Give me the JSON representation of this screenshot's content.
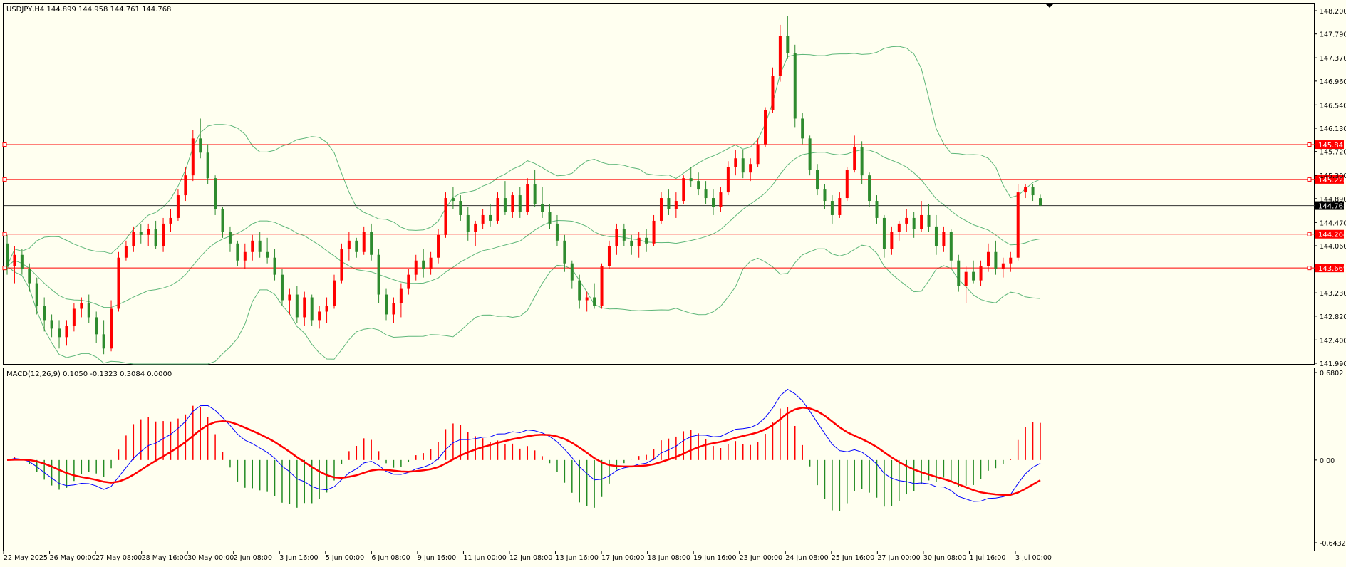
{
  "chart_header": "USDJPY,H4  144.899 144.958 144.761 144.768",
  "macd_header": "MACD(12,26,9) 0.1050 -0.1323 0.3084 0.0000",
  "colors": {
    "background": "#fffff0",
    "bull_candle": "#ff0000",
    "bear_candle": "#2e8b2e",
    "bollinger": "#5fb77a",
    "level_line": "#ff0000",
    "bid_line": "#333333",
    "macd_hist_up": "#ff0000",
    "macd_hist_down": "#228b22",
    "macd_line": "#0000ff",
    "signal_line": "#ff0000",
    "axis": "#000000",
    "price_tag": "#ff0000",
    "bid_tag": "#000000"
  },
  "chart_data": [
    {
      "type": "candlestick",
      "symbol": "USDJPY",
      "timeframe": "H4",
      "ylim": [
        141.99,
        148.2
      ],
      "y_ticks": [
        "148.200",
        "147.790",
        "147.370",
        "146.960",
        "146.540",
        "146.130",
        "145.720",
        "145.300",
        "144.890",
        "144.470",
        "144.060",
        "143.230",
        "142.820",
        "142.400",
        "141.990"
      ],
      "x_ticks": [
        "22 May 2025",
        "26 May 00:00",
        "27 May 08:00",
        "28 May 16:00",
        "30 May 00:00",
        "2 Jun 08:00",
        "3 Jun 16:00",
        "5 Jun 00:00",
        "6 Jun 08:00",
        "9 Jun 16:00",
        "11 Jun 00:00",
        "12 Jun 08:00",
        "13 Jun 16:00",
        "17 Jun 00:00",
        "18 Jun 08:00",
        "19 Jun 16:00",
        "23 Jun 00:00",
        "24 Jun 08:00",
        "25 Jun 16:00",
        "27 Jun 00:00",
        "30 Jun 08:00",
        "1 Jul 16:00",
        "3 Jul 00:00"
      ],
      "horizontal_levels": [
        145.841,
        145.228,
        144.264,
        143.669
      ],
      "level_labels": [
        "145.841",
        "145.228",
        "144.264",
        "143.669"
      ],
      "bid": 144.768,
      "bid_label": "144.768",
      "candles": [
        [
          144.1,
          144.25,
          143.55,
          143.7
        ],
        [
          143.7,
          144.05,
          143.4,
          143.9
        ],
        [
          143.9,
          144.0,
          143.55,
          143.65
        ],
        [
          143.65,
          143.75,
          143.25,
          143.4
        ],
        [
          143.4,
          143.5,
          142.85,
          143.0
        ],
        [
          143.0,
          143.15,
          142.55,
          142.75
        ],
        [
          142.75,
          142.85,
          142.45,
          142.6
        ],
        [
          142.6,
          142.75,
          142.25,
          142.45
        ],
        [
          142.45,
          142.75,
          142.3,
          142.65
        ],
        [
          142.65,
          143.05,
          142.55,
          142.95
        ],
        [
          142.95,
          143.15,
          142.8,
          143.05
        ],
        [
          143.05,
          143.2,
          142.7,
          142.8
        ],
        [
          142.8,
          142.9,
          142.35,
          142.5
        ],
        [
          142.5,
          142.75,
          142.15,
          142.25
        ],
        [
          142.25,
          143.1,
          142.2,
          142.95
        ],
        [
          142.95,
          143.95,
          142.9,
          143.85
        ],
        [
          143.85,
          144.15,
          143.8,
          144.05
        ],
        [
          144.05,
          144.4,
          143.95,
          144.3
        ],
        [
          144.3,
          144.45,
          144.1,
          144.25
        ],
        [
          144.25,
          144.45,
          144.05,
          144.35
        ],
        [
          144.35,
          144.5,
          144.0,
          144.05
        ],
        [
          144.05,
          144.55,
          143.95,
          144.45
        ],
        [
          144.45,
          144.7,
          144.3,
          144.55
        ],
        [
          144.55,
          145.05,
          144.5,
          144.95
        ],
        [
          144.95,
          145.45,
          144.85,
          145.3
        ],
        [
          145.3,
          146.1,
          145.2,
          145.95
        ],
        [
          145.95,
          146.3,
          145.6,
          145.7
        ],
        [
          145.7,
          145.85,
          145.15,
          145.25
        ],
        [
          145.25,
          145.3,
          144.6,
          144.7
        ],
        [
          144.7,
          144.75,
          144.2,
          144.3
        ],
        [
          144.3,
          144.4,
          143.95,
          144.1
        ],
        [
          144.1,
          144.15,
          143.7,
          143.8
        ],
        [
          143.8,
          144.1,
          143.65,
          143.95
        ],
        [
          143.95,
          144.25,
          143.8,
          144.15
        ],
        [
          144.15,
          144.3,
          143.85,
          143.95
        ],
        [
          143.95,
          144.2,
          143.75,
          143.85
        ],
        [
          143.85,
          144.0,
          143.45,
          143.55
        ],
        [
          143.55,
          143.65,
          143.0,
          143.1
        ],
        [
          143.1,
          143.3,
          142.85,
          143.2
        ],
        [
          143.2,
          143.35,
          142.7,
          142.8
        ],
        [
          142.8,
          143.25,
          142.65,
          143.15
        ],
        [
          143.15,
          143.2,
          142.65,
          142.75
        ],
        [
          142.75,
          143.0,
          142.6,
          142.9
        ],
        [
          142.9,
          143.15,
          142.7,
          143.0
        ],
        [
          143.0,
          143.55,
          142.95,
          143.45
        ],
        [
          143.45,
          144.1,
          143.4,
          144.0
        ],
        [
          144.0,
          144.3,
          143.8,
          144.15
        ],
        [
          144.15,
          144.2,
          143.85,
          143.95
        ],
        [
          143.95,
          144.4,
          143.9,
          144.3
        ],
        [
          144.3,
          144.45,
          143.8,
          143.9
        ],
        [
          143.9,
          144.0,
          143.05,
          143.2
        ],
        [
          143.2,
          143.3,
          142.75,
          142.85
        ],
        [
          142.85,
          143.15,
          142.7,
          143.05
        ],
        [
          143.05,
          143.4,
          142.8,
          143.3
        ],
        [
          143.3,
          143.65,
          143.2,
          143.55
        ],
        [
          143.55,
          143.9,
          143.45,
          143.8
        ],
        [
          143.8,
          144.0,
          143.5,
          143.65
        ],
        [
          143.65,
          143.95,
          143.55,
          143.85
        ],
        [
          143.85,
          144.35,
          143.75,
          144.25
        ],
        [
          144.25,
          145.0,
          144.2,
          144.9
        ],
        [
          144.9,
          145.1,
          144.7,
          144.85
        ],
        [
          144.85,
          144.95,
          144.5,
          144.6
        ],
        [
          144.6,
          144.75,
          144.15,
          144.3
        ],
        [
          144.3,
          144.5,
          144.05,
          144.45
        ],
        [
          144.45,
          144.7,
          144.35,
          144.6
        ],
        [
          144.6,
          144.8,
          144.4,
          144.5
        ],
        [
          144.5,
          145.0,
          144.45,
          144.9
        ],
        [
          144.9,
          145.2,
          144.6,
          144.65
        ],
        [
          144.65,
          145.0,
          144.55,
          144.95
        ],
        [
          144.95,
          145.1,
          144.55,
          144.65
        ],
        [
          144.65,
          145.25,
          144.6,
          145.15
        ],
        [
          145.15,
          145.4,
          144.75,
          144.8
        ],
        [
          144.8,
          145.1,
          144.55,
          144.65
        ],
        [
          144.65,
          144.8,
          144.35,
          144.45
        ],
        [
          144.45,
          144.6,
          144.05,
          144.15
        ],
        [
          144.15,
          144.25,
          143.6,
          143.75
        ],
        [
          143.75,
          143.8,
          143.3,
          143.45
        ],
        [
          143.45,
          143.55,
          142.95,
          143.1
        ],
        [
          143.1,
          143.25,
          142.9,
          143.15
        ],
        [
          143.15,
          143.4,
          142.95,
          143.0
        ],
        [
          143.0,
          143.75,
          142.95,
          143.7
        ],
        [
          143.7,
          144.15,
          143.65,
          144.05
        ],
        [
          144.05,
          144.45,
          143.9,
          144.35
        ],
        [
          144.35,
          144.45,
          144.05,
          144.15
        ],
        [
          144.15,
          144.25,
          143.9,
          144.05
        ],
        [
          144.05,
          144.3,
          143.85,
          144.2
        ],
        [
          144.2,
          144.35,
          143.95,
          144.1
        ],
        [
          144.1,
          144.6,
          144.05,
          144.5
        ],
        [
          144.5,
          145.0,
          144.45,
          144.9
        ],
        [
          144.9,
          145.05,
          144.6,
          144.7
        ],
        [
          144.7,
          145.0,
          144.55,
          144.85
        ],
        [
          144.85,
          145.3,
          144.8,
          145.25
        ],
        [
          145.25,
          145.45,
          145.1,
          145.2
        ],
        [
          145.2,
          145.35,
          144.95,
          145.05
        ],
        [
          145.05,
          145.2,
          144.8,
          144.9
        ],
        [
          144.9,
          145.05,
          144.6,
          144.75
        ],
        [
          144.75,
          145.1,
          144.65,
          145.0
        ],
        [
          145.0,
          145.55,
          144.95,
          145.45
        ],
        [
          145.45,
          145.75,
          145.3,
          145.6
        ],
        [
          145.6,
          145.75,
          145.25,
          145.35
        ],
        [
          145.35,
          145.6,
          145.2,
          145.5
        ],
        [
          145.5,
          145.95,
          145.45,
          145.85
        ],
        [
          145.85,
          146.5,
          145.8,
          146.45
        ],
        [
          146.45,
          147.2,
          146.4,
          147.05
        ],
        [
          147.05,
          147.95,
          146.95,
          147.75
        ],
        [
          147.75,
          148.1,
          147.35,
          147.45
        ],
        [
          147.45,
          147.6,
          146.15,
          146.3
        ],
        [
          146.3,
          146.4,
          145.85,
          145.95
        ],
        [
          145.95,
          146.0,
          145.3,
          145.4
        ],
        [
          145.4,
          145.5,
          144.95,
          145.05
        ],
        [
          145.05,
          145.15,
          144.7,
          144.85
        ],
        [
          144.85,
          144.95,
          144.45,
          144.6
        ],
        [
          144.6,
          145.0,
          144.55,
          144.9
        ],
        [
          144.9,
          145.45,
          144.85,
          145.4
        ],
        [
          145.4,
          146.0,
          145.35,
          145.8
        ],
        [
          145.8,
          145.9,
          145.15,
          145.3
        ],
        [
          145.3,
          145.35,
          144.75,
          144.85
        ],
        [
          144.85,
          144.95,
          144.45,
          144.55
        ],
        [
          144.55,
          144.6,
          143.85,
          144.0
        ],
        [
          144.0,
          144.4,
          143.9,
          144.3
        ],
        [
          144.3,
          144.5,
          144.15,
          144.45
        ],
        [
          144.45,
          144.7,
          144.3,
          144.55
        ],
        [
          144.55,
          144.65,
          144.2,
          144.35
        ],
        [
          144.35,
          144.85,
          144.3,
          144.6
        ],
        [
          144.6,
          144.8,
          144.3,
          144.4
        ],
        [
          144.4,
          144.6,
          143.9,
          144.05
        ],
        [
          144.05,
          144.4,
          143.95,
          144.3
        ],
        [
          144.3,
          144.35,
          143.65,
          143.8
        ],
        [
          143.8,
          143.9,
          143.25,
          143.35
        ],
        [
          143.35,
          143.7,
          143.05,
          143.6
        ],
        [
          143.6,
          143.8,
          143.4,
          143.45
        ],
        [
          143.45,
          143.8,
          143.35,
          143.7
        ],
        [
          143.7,
          144.1,
          143.6,
          143.95
        ],
        [
          143.95,
          144.15,
          143.55,
          143.65
        ],
        [
          143.65,
          143.85,
          143.5,
          143.75
        ],
        [
          143.75,
          143.95,
          143.6,
          143.85
        ],
        [
          143.85,
          145.15,
          143.8,
          145.0
        ],
        [
          145.0,
          145.15,
          144.9,
          145.1
        ],
        [
          145.1,
          145.15,
          144.85,
          144.95
        ],
        [
          144.899,
          144.958,
          144.761,
          144.768
        ]
      ]
    },
    {
      "type": "macd",
      "params": "MACD(12,26,9)",
      "ylim": [
        -0.6432,
        0.6802
      ],
      "y_ticks": [
        "0.6802",
        "0.00",
        "-0.6432"
      ]
    }
  ]
}
